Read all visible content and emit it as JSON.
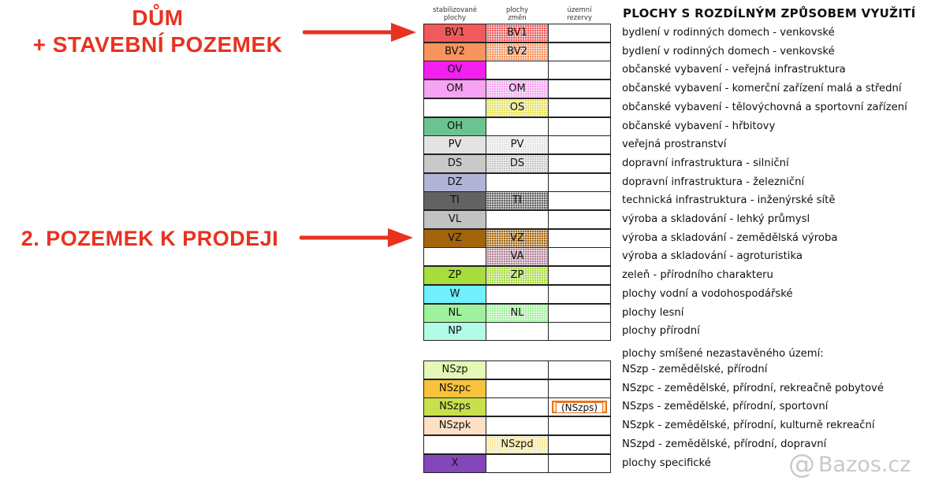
{
  "callouts": {
    "house": [
      "DŮM",
      "+ STAVEBNÍ POZEMEK"
    ],
    "sale": "2. POZEMEK K PRODEJI"
  },
  "columns": {
    "stabilized": [
      "stabilizované",
      "plochy"
    ],
    "changes": [
      "plochy",
      "změn"
    ],
    "reserves": [
      "územní",
      "rezervy"
    ]
  },
  "legend_title": "PLOCHY S ROZDÍLNÝM ZPŮSOBEM VYUŽITÍ",
  "rows": [
    {
      "c1": "BV1",
      "c2": "BV1",
      "c3": "",
      "color": "#f05a5a",
      "c1_fill": true,
      "c2_fill": true,
      "desc": "bydlení v rodinných domech - venkovské"
    },
    {
      "c1": "BV2",
      "c2": "BV2",
      "c3": "",
      "color": "#f8935e",
      "c1_fill": true,
      "c2_fill": true,
      "desc": "bydlení v rodinných domech - venkovské"
    },
    {
      "c1": "OV",
      "c2": "",
      "c3": "",
      "color": "#f21ff0",
      "c1_fill": true,
      "c2_fill": false,
      "desc": "občanské vybavení - veřejná infrastruktura"
    },
    {
      "c1": "OM",
      "c2": "OM",
      "c3": "",
      "color": "#f6a3f3",
      "c1_fill": true,
      "c2_fill": true,
      "desc": "občanské vybavení - komerční zařízení malá a střední"
    },
    {
      "c1": "",
      "c2": "OS",
      "c3": "",
      "color": "#e6e35a",
      "c1_fill": false,
      "c2_fill": true,
      "desc": "občanské vybavení - tělovýchovná a sportovní zařízení"
    },
    {
      "c1": "OH",
      "c2": "",
      "c3": "",
      "color": "#6bc48f",
      "c1_fill": true,
      "c2_fill": false,
      "desc": "občanské vybavení - hřbitovy"
    },
    {
      "c1": "PV",
      "c2": "PV",
      "c3": "",
      "color": "#e3e3e3",
      "c1_fill": true,
      "c2_fill": true,
      "desc": "veřejná prostranství"
    },
    {
      "c1": "DS",
      "c2": "DS",
      "c3": "",
      "color": "#c9c9c9",
      "c1_fill": true,
      "c2_fill": true,
      "desc": "dopravní infrastruktura - silniční"
    },
    {
      "c1": "DZ",
      "c2": "",
      "c3": "",
      "color": "#b2b4d7",
      "c1_fill": true,
      "c2_fill": false,
      "desc": "dopravní infrastruktura - železniční"
    },
    {
      "c1": "TI",
      "c2": "TI",
      "c3": "",
      "color": "#626262",
      "c1_fill": true,
      "c2_fill": true,
      "desc": "technická infrastruktura - inženýrské sítě"
    },
    {
      "c1": "VL",
      "c2": "",
      "c3": "",
      "color": "#c2c2c2",
      "c1_fill": true,
      "c2_fill": false,
      "desc": "výroba a skladování - lehký průmysl"
    },
    {
      "c1": "VZ",
      "c2": "VZ",
      "c3": "",
      "color": "#a3640e",
      "c1_fill": true,
      "c2_fill": true,
      "desc": "výroba a skladování - zemědělská výroba"
    },
    {
      "c1": "",
      "c2": "VA",
      "c3": "",
      "color": "#b3879a",
      "c1_fill": false,
      "c2_fill": true,
      "desc": "výroba a skladování - agroturistika"
    },
    {
      "c1": "ZP",
      "c2": "ZP",
      "c3": "",
      "color": "#a7dd3c",
      "c1_fill": true,
      "c2_fill": true,
      "desc": "zeleň - přírodního charakteru"
    },
    {
      "c1": "W",
      "c2": "",
      "c3": "",
      "color": "#6ff0fb",
      "c1_fill": true,
      "c2_fill": false,
      "desc": "plochy vodní a vodohospodářské"
    },
    {
      "c1": "NL",
      "c2": "NL",
      "c3": "",
      "color": "#9ff29b",
      "c1_fill": true,
      "c2_fill": true,
      "desc": "plochy lesní"
    },
    {
      "c1": "NP",
      "c2": "",
      "c3": "",
      "color": "#b4fbe5",
      "c1_fill": true,
      "c2_fill": false,
      "desc": "plochy přírodní"
    }
  ],
  "mixed_heading": "plochy smíšené nezastavěného území:",
  "mixed_rows": [
    {
      "c1": "NSzp",
      "c2": "",
      "c3": "",
      "color": "#e3f9b5",
      "c1_fill": true,
      "c2_fill": false,
      "desc": "NSzp - zemědělské, přírodní"
    },
    {
      "c1": "NSzpc",
      "c2": "",
      "c3": "",
      "color": "#f9c23c",
      "c1_fill": true,
      "c2_fill": false,
      "desc": "NSzpc - zemědělské, přírodní, rekreačně pobytové"
    },
    {
      "c1": "NSzps",
      "c2": "",
      "c3": "(NSzps)",
      "color": "#c9e04b",
      "c1_fill": true,
      "c2_fill": false,
      "desc": "NSzps - zemědělské, přírodní, sportovní"
    },
    {
      "c1": "NSzpk",
      "c2": "",
      "c3": "",
      "color": "#fde0c6",
      "c1_fill": true,
      "c2_fill": false,
      "desc": "NSzpk - zemědělské, přírodní, kulturně rekreační"
    },
    {
      "c1": "",
      "c2": "NSzpd",
      "c3": "",
      "color": "#f7e79b",
      "c1_fill": false,
      "c2_fill": true,
      "desc": "NSzpd - zemědělské, přírodní, dopravní"
    },
    {
      "c1": "X",
      "c2": "",
      "c3": "",
      "color": "#8446bb",
      "c1_fill": true,
      "c2_fill": false,
      "desc": "plochy specifické"
    }
  ],
  "watermark": {
    "icon": "at-sign-icon",
    "text": "Bazos.cz"
  }
}
